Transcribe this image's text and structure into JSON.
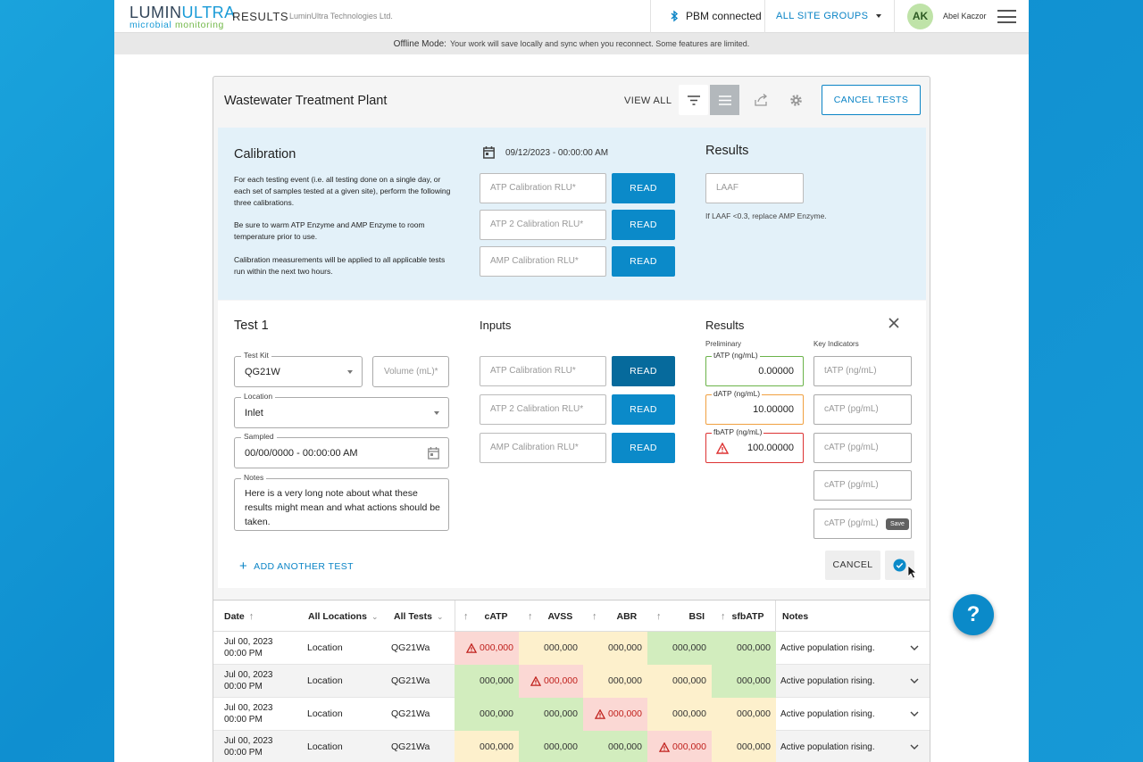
{
  "brand": {
    "logo_top_a": "LUMIN",
    "logo_top_b": "ULTRA",
    "logo_sub_a": "microbial",
    "logo_sub_b": "monitoring"
  },
  "header": {
    "app_title": "RESULTS",
    "org_name": "LuminUltra Technologies Ltd.",
    "bluetooth_status": "PBM connected",
    "site_groups": "ALL SITE GROUPS",
    "avatar_initials": "AK",
    "user_name": "Abel Kaczor"
  },
  "offline_banner": {
    "title": "Offline Mode:",
    "message": "Your work will save locally and sync when you reconnect. Some features are limited."
  },
  "card": {
    "title": "Wastewater Treatment Plant",
    "view_all": "VIEW ALL",
    "cancel_tests": "CANCEL TESTS"
  },
  "calibration": {
    "title": "Calibration",
    "paragraphs": [
      "For each testing event (i.e. all testing done on a single day, or each set of samples tested at a given site), perform the following three calibrations.",
      "Be sure to warm ATP Enzyme and AMP Enzyme to room temperature prior to use.",
      "Calibration measurements will be applied to all applicable tests run within the next two hours."
    ],
    "datetime": "09/12/2023 - 00:00:00 AM",
    "inputs": [
      {
        "placeholder": "ATP Calibration RLU*",
        "button": "READ"
      },
      {
        "placeholder": "ATP 2 Calibration RLU*",
        "button": "READ"
      },
      {
        "placeholder": "AMP Calibration RLU*",
        "button": "READ"
      }
    ],
    "results_title": "Results",
    "laaf_placeholder": "LAAF",
    "laaf_note": "If LAAF <0.3, replace AMP Enzyme."
  },
  "test": {
    "title": "Test 1",
    "test_kit_label": "Test Kit",
    "test_kit_value": "QG21W",
    "volume_placeholder": "Volume (mL)*",
    "location_label": "Location",
    "location_value": "Inlet",
    "sampled_label": "Sampled",
    "sampled_value": "00/00/0000 - 00:00:00 AM",
    "notes_label": "Notes",
    "notes_value": "Here is a very long note about what these results might mean and what actions should be taken.",
    "inputs_title": "Inputs",
    "inputs": [
      {
        "placeholder": "ATP Calibration RLU*",
        "button": "READ"
      },
      {
        "placeholder": "ATP 2 Calibration RLU*",
        "button": "READ"
      },
      {
        "placeholder": "AMP Calibration RLU*",
        "button": "READ"
      }
    ],
    "results_title": "Results",
    "preliminary_label": "Preliminary",
    "key_indicators_label": "Key Indicators",
    "preliminary": [
      {
        "label": "tATP (ng/mL)",
        "value": "0.00000",
        "status": "green"
      },
      {
        "label": "dATP (ng/mL)",
        "value": "10.00000",
        "status": "orange"
      },
      {
        "label": "fbATP (ng/mL)",
        "value": "100.00000",
        "status": "red"
      }
    ],
    "key_indicators": [
      "tATP (ng/mL)",
      "cATP (pg/mL)",
      "cATP (pg/mL)",
      "cATP (pg/mL)",
      "cATP (pg/mL)"
    ],
    "tooltip": "Save",
    "add_another": "ADD ANOTHER TEST",
    "cancel": "CANCEL"
  },
  "table": {
    "headers": {
      "date": "Date",
      "location": "All Locations",
      "tests": "All Tests",
      "catp": "cATP",
      "avss": "AVSS",
      "abr": "ABR",
      "bsi": "BSI",
      "sfbatp": "sfbATP",
      "notes": "Notes"
    },
    "rows": [
      {
        "date1": "Jul 00, 2023",
        "date2": "00:00 PM",
        "location": "Location",
        "test": "QG21Wa",
        "values": [
          "000,000",
          "000,000",
          "000,000",
          "000,000",
          "000,000"
        ],
        "status": [
          "r",
          "y",
          "y",
          "g",
          "g"
        ],
        "note": "Active population rising."
      },
      {
        "date1": "Jul 00, 2023",
        "date2": "00:00 PM",
        "location": "Location",
        "test": "QG21Wa",
        "values": [
          "000,000",
          "000,000",
          "000,000",
          "000,000",
          "000,000"
        ],
        "status": [
          "g",
          "r",
          "y",
          "y",
          "g"
        ],
        "note": "Active population rising."
      },
      {
        "date1": "Jul 00, 2023",
        "date2": "00:00 PM",
        "location": "Location",
        "test": "QG21Wa",
        "values": [
          "000,000",
          "000,000",
          "000,000",
          "000,000",
          "000,000"
        ],
        "status": [
          "g",
          "g",
          "r",
          "y",
          "y"
        ],
        "note": "Active population rising."
      },
      {
        "date1": "Jul 00, 2023",
        "date2": "00:00 PM",
        "location": "Location",
        "test": "QG21Wa",
        "values": [
          "000,000",
          "000,000",
          "000,000",
          "000,000",
          "000,000"
        ],
        "status": [
          "y",
          "g",
          "g",
          "r",
          "y"
        ],
        "note": "Active population rising."
      }
    ]
  },
  "help_label": "?",
  "colors": {
    "primary": "#0b8ac9",
    "danger": "#c0201c",
    "bg_gradient": "#1aa3dc"
  }
}
